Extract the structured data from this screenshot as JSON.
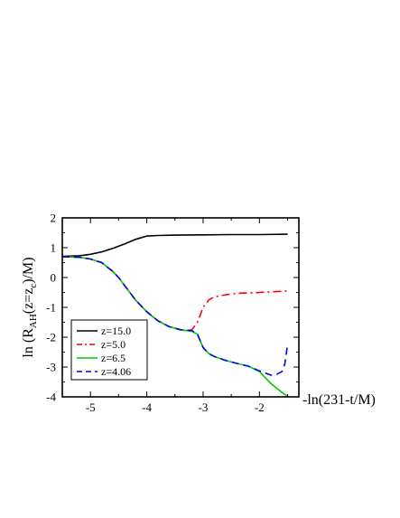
{
  "chart_data": {
    "type": "line",
    "xlabel": "-ln(231-t/M)",
    "ylabel": "ln (R_AH(z=z_c)/M)",
    "ylabel_parts": {
      "base": "ln (R",
      "sub1": "AH",
      "mid": "(z=z",
      "sub2": "c",
      "end": ")/M)"
    },
    "xlim": [
      -5.5,
      -1.3
    ],
    "ylim": [
      -4,
      2
    ],
    "xticks": [
      -5,
      -4,
      -3,
      -2
    ],
    "xtick_labels": [
      "-5",
      "-4",
      "-3",
      "-2"
    ],
    "yticks": [
      2,
      1,
      0,
      -1,
      -2,
      -3,
      -4
    ],
    "ytick_labels": [
      "2",
      "1",
      "0",
      "-1",
      "-2",
      "-3",
      "-4"
    ],
    "legend_position": "lower-left",
    "series": [
      {
        "name": "z=15.0",
        "color": "#000000",
        "dash": "solid",
        "x": [
          -5.5,
          -5.2,
          -5.0,
          -4.8,
          -4.6,
          -4.4,
          -4.2,
          -4.0,
          -3.8,
          -3.5,
          -3.0,
          -2.5,
          -2.0,
          -1.5
        ],
        "y": [
          0.71,
          0.73,
          0.78,
          0.86,
          0.98,
          1.12,
          1.28,
          1.39,
          1.41,
          1.42,
          1.43,
          1.44,
          1.44,
          1.45
        ]
      },
      {
        "name": "z=5.0",
        "color": "#ff0000",
        "dash": "dashdot",
        "x": [
          -5.5,
          -5.2,
          -5.0,
          -4.8,
          -4.6,
          -4.5,
          -4.4,
          -4.2,
          -4.0,
          -3.8,
          -3.6,
          -3.4,
          -3.3,
          -3.2,
          -3.1,
          -3.0,
          -2.9,
          -2.8,
          -2.6,
          -2.4,
          -2.0,
          -1.5
        ],
        "y": [
          0.7,
          0.68,
          0.62,
          0.5,
          0.2,
          0.0,
          -0.25,
          -0.75,
          -1.15,
          -1.45,
          -1.65,
          -1.75,
          -1.78,
          -1.75,
          -1.5,
          -1.0,
          -0.75,
          -0.65,
          -0.58,
          -0.53,
          -0.5,
          -0.45
        ]
      },
      {
        "name": "z=6.5",
        "color": "#00cc00",
        "dash": "solid",
        "x": [
          -5.5,
          -5.2,
          -5.0,
          -4.8,
          -4.6,
          -4.5,
          -4.4,
          -4.2,
          -4.0,
          -3.8,
          -3.6,
          -3.4,
          -3.2,
          -3.1,
          -3.0,
          -2.9,
          -2.8,
          -2.6,
          -2.4,
          -2.2,
          -2.0,
          -1.8,
          -1.6,
          -1.5
        ],
        "y": [
          0.7,
          0.68,
          0.62,
          0.5,
          0.2,
          0.0,
          -0.25,
          -0.75,
          -1.15,
          -1.45,
          -1.65,
          -1.75,
          -1.8,
          -1.9,
          -2.35,
          -2.55,
          -2.65,
          -2.78,
          -2.88,
          -2.97,
          -3.15,
          -3.55,
          -3.85,
          -3.98
        ]
      },
      {
        "name": "z=4.06",
        "color": "#0000ee",
        "dash": "dashed",
        "x": [
          -5.5,
          -5.2,
          -5.0,
          -4.8,
          -4.6,
          -4.5,
          -4.4,
          -4.2,
          -4.0,
          -3.8,
          -3.6,
          -3.4,
          -3.2,
          -3.1,
          -3.0,
          -2.9,
          -2.8,
          -2.6,
          -2.4,
          -2.2,
          -2.0,
          -1.8,
          -1.7,
          -1.6,
          -1.55,
          -1.5
        ],
        "y": [
          0.7,
          0.68,
          0.62,
          0.5,
          0.2,
          0.0,
          -0.25,
          -0.75,
          -1.15,
          -1.45,
          -1.65,
          -1.75,
          -1.78,
          -1.9,
          -2.35,
          -2.55,
          -2.65,
          -2.78,
          -2.88,
          -2.97,
          -3.13,
          -3.27,
          -3.25,
          -3.15,
          -2.9,
          -2.25
        ]
      }
    ]
  }
}
